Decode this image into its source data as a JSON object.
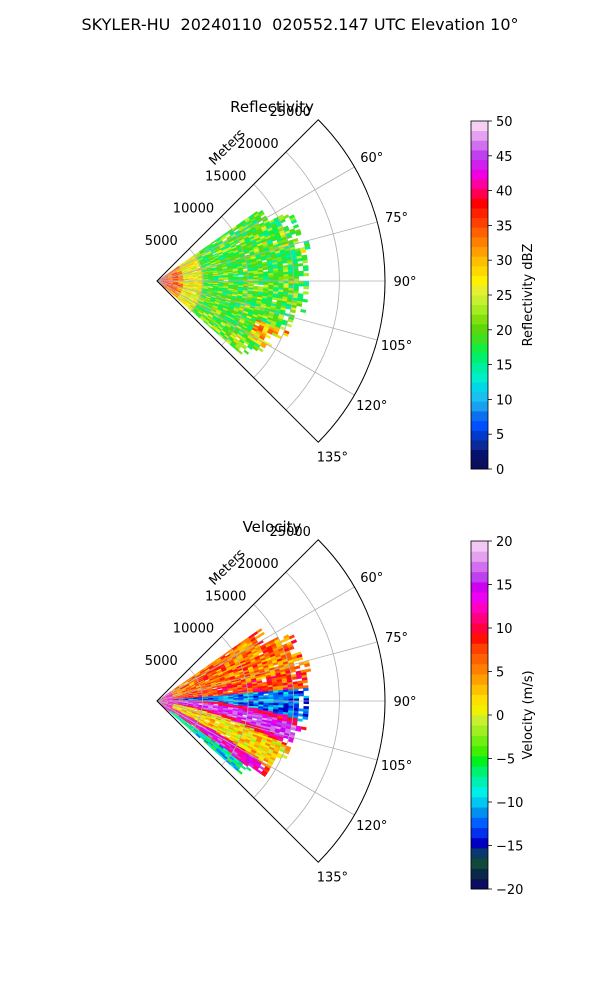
{
  "title": "SKYLER-HU  20240110  020552.147 UTC Elevation 10°",
  "chart_data": [
    {
      "type": "polar-sector",
      "title": "Reflectivity",
      "range_axis_label": "Meters",
      "range_ticks": [
        5000,
        10000,
        15000,
        20000,
        25000
      ],
      "range_tick_labels": [
        "5000",
        "10000",
        "15000",
        "20000",
        "25000"
      ],
      "rmax": 25000,
      "azimuth_range_deg": [
        45,
        135
      ],
      "azimuth_ticks": [
        60,
        75,
        90,
        105,
        120,
        135
      ],
      "azimuth_tick_labels": [
        "60°",
        "75°",
        "90°",
        "105°",
        "120°",
        "135°"
      ],
      "data_extent_m": 16000,
      "colorbar": {
        "label": "Reflectivity dBZ",
        "vmin": 0,
        "vmax": 50,
        "ticks": [
          0,
          5,
          10,
          15,
          20,
          25,
          30,
          35,
          40,
          45,
          50
        ],
        "tick_labels": [
          "0",
          "5",
          "10",
          "15",
          "20",
          "25",
          "30",
          "35",
          "40",
          "45",
          "50"
        ],
        "colors": [
          "#0b0e5e",
          "#08106e",
          "#0a2a9a",
          "#0039cc",
          "#0050ff",
          "#0c6ff0",
          "#1aa0f0",
          "#1ac0f0",
          "#00d8e8",
          "#00eec8",
          "#00f0a0",
          "#00f070",
          "#14ee40",
          "#3ee020",
          "#5cd80a",
          "#80e010",
          "#a6ec20",
          "#c8f030",
          "#e6f030",
          "#fff000",
          "#ffd800",
          "#ffbe00",
          "#ffa000",
          "#ff8000",
          "#ff6000",
          "#ff4000",
          "#ff2000",
          "#ff0000",
          "#ff0050",
          "#ff00a0",
          "#f000e0",
          "#d020f0",
          "#c040f0",
          "#d070f0",
          "#e6a0f0",
          "#f4d0f4"
        ]
      }
    },
    {
      "type": "polar-sector",
      "title": "Velocity",
      "range_axis_label": "Meters",
      "range_ticks": [
        5000,
        10000,
        15000,
        20000,
        25000
      ],
      "range_tick_labels": [
        "5000",
        "10000",
        "15000",
        "20000",
        "25000"
      ],
      "rmax": 25000,
      "azimuth_range_deg": [
        45,
        135
      ],
      "azimuth_ticks": [
        60,
        75,
        90,
        105,
        120,
        135
      ],
      "azimuth_tick_labels": [
        "60°",
        "75°",
        "90°",
        "105°",
        "120°",
        "135°"
      ],
      "data_extent_m": 16000,
      "colorbar": {
        "label": "Velocity (m/s)",
        "vmin": -20,
        "vmax": 20,
        "ticks": [
          -20,
          -15,
          -10,
          -5,
          0,
          5,
          10,
          15,
          20
        ],
        "tick_labels": [
          "−20",
          "−15",
          "−10",
          "−5",
          "0",
          "5",
          "10",
          "15",
          "20"
        ],
        "colors": [
          "#0b0e5e",
          "#0a2848",
          "#10483a",
          "#0a3a6a",
          "#0000c0",
          "#0030f0",
          "#0060ff",
          "#0090f0",
          "#00c8f0",
          "#00f0e8",
          "#00f0b0",
          "#00f070",
          "#00f020",
          "#40f000",
          "#70f010",
          "#a0f020",
          "#c8f030",
          "#f0f000",
          "#ffe000",
          "#ffc000",
          "#ffa000",
          "#ff8000",
          "#ff6000",
          "#ff4000",
          "#ff1000",
          "#ff0040",
          "#ff0080",
          "#ff00c0",
          "#f000f0",
          "#d000f0",
          "#c040f0",
          "#d070f0",
          "#e6a0f0",
          "#f4c8f4"
        ]
      }
    }
  ]
}
